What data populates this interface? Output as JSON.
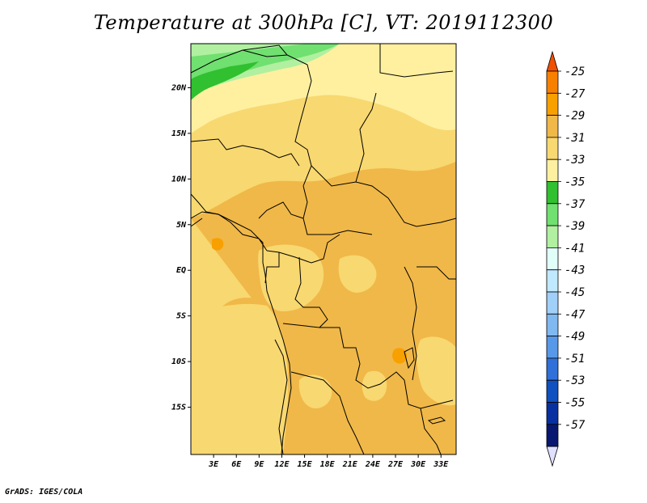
{
  "title": "Temperature at 300hPa [C], VT: 2019112300",
  "footer": "GrADS: IGES/COLA",
  "map": {
    "lon_range": [
      0,
      35
    ],
    "lat_range": [
      -20,
      25
    ],
    "y_ticks": [
      "20N",
      "15N",
      "10N",
      "5N",
      "EQ",
      "5S",
      "10S",
      "15S"
    ],
    "x_ticks": [
      "3E",
      "6E",
      "9E",
      "12E",
      "15E",
      "18E",
      "21E",
      "24E",
      "27E",
      "30E",
      "33E"
    ]
  },
  "colorbar": {
    "labels": [
      "-25",
      "-27",
      "-29",
      "-31",
      "-33",
      "-35",
      "-37",
      "-39",
      "-41",
      "-43",
      "-45",
      "-47",
      "-49",
      "-51",
      "-53",
      "-55",
      "-57"
    ],
    "colors": [
      "#f05000",
      "#f88000",
      "#f8a000",
      "#f0b848",
      "#f8d870",
      "#fff0a0",
      "#30c030",
      "#70e070",
      "#b0f0a0",
      "#e0fff8",
      "#c0e8ff",
      "#a0d0f8",
      "#80b8f0",
      "#5898e8",
      "#3070d8",
      "#1050c0",
      "#0830a0",
      "#081870",
      "#e0e0ff"
    ]
  },
  "fill_colors": {
    "c33": "#fff0a0",
    "c31": "#f8d870",
    "c29": "#f0b848",
    "c27": "#f8a000",
    "g37": "#30c030",
    "g39": "#70e070",
    "g41": "#b0f0a0"
  }
}
